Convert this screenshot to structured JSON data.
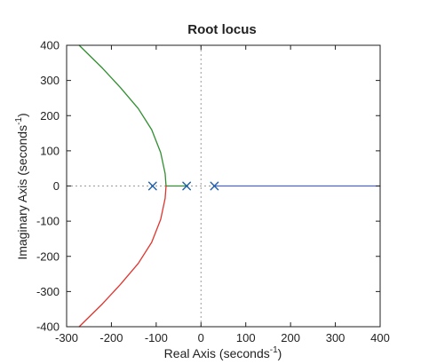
{
  "chart_data": {
    "type": "line",
    "title": "Root locus",
    "xlabel": {
      "main": "Real Axis (seconds",
      "exp": "-1",
      "close": ")"
    },
    "ylabel": {
      "main": "Imaginary Axis (seconds",
      "exp": "-1",
      "close": ")"
    },
    "xlim": [
      -300,
      400
    ],
    "ylim": [
      -400,
      400
    ],
    "x_ticks": [
      -300,
      -200,
      -100,
      0,
      100,
      200,
      300,
      400
    ],
    "y_ticks": [
      -400,
      -300,
      -200,
      -100,
      0,
      100,
      200,
      300,
      400
    ],
    "grid": false,
    "legend": "none",
    "reference_lines": {
      "x": 0,
      "y": 0,
      "style": "dotted",
      "color": "#9a9a9a"
    },
    "series": [
      {
        "color": "#2f8f2f",
        "points": [
          [
            -30,
            0
          ],
          [
            -45,
            0
          ],
          [
            -60,
            0
          ],
          [
            -78,
            0
          ],
          [
            -80,
            35
          ],
          [
            -90,
            95
          ],
          [
            -110,
            160
          ],
          [
            -140,
            220
          ],
          [
            -180,
            280
          ],
          [
            -220,
            335
          ],
          [
            -272,
            400
          ]
        ]
      },
      {
        "color": "#e0342d",
        "points": [
          [
            -78,
            0
          ],
          [
            -80,
            -35
          ],
          [
            -90,
            -95
          ],
          [
            -110,
            -160
          ],
          [
            -140,
            -220
          ],
          [
            -180,
            -280
          ],
          [
            -220,
            -335
          ],
          [
            -272,
            -400
          ]
        ]
      },
      {
        "color": "#4b63d6",
        "points": [
          [
            30,
            0
          ],
          [
            400,
            0
          ]
        ]
      }
    ],
    "poles": [
      {
        "x": -108,
        "y": 0
      },
      {
        "x": -32,
        "y": 0
      },
      {
        "x": 30,
        "y": 0
      }
    ],
    "marker_color": "#1f5fa8"
  }
}
